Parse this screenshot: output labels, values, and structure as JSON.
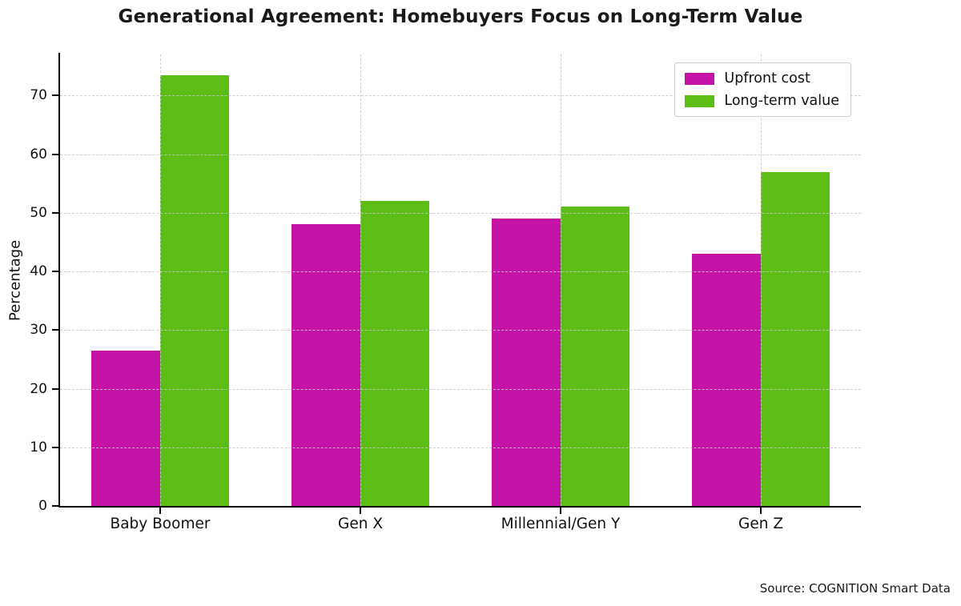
{
  "title": "Generational Agreement: Homebuyers Focus on Long-Term Value",
  "source": "Source: COGNITION Smart Data",
  "colors": {
    "upfront_cost": "#C413A6",
    "long_term_value": "#5CBE14",
    "grid": "#c8c8c8",
    "axis": "#000000",
    "text": "#111111"
  },
  "legend": {
    "items": [
      {
        "label": "Upfront cost",
        "color": "#C413A6"
      },
      {
        "label": "Long-term value",
        "color": "#5CBE14"
      }
    ]
  },
  "chart_data": {
    "type": "bar",
    "title": "Generational Agreement: Homebuyers Focus on Long-Term Value",
    "categories": [
      "Baby Boomer",
      "Gen X",
      "Millennial/Gen Y",
      "Gen Z"
    ],
    "series": [
      {
        "name": "Upfront cost",
        "color": "#C413A6",
        "values": [
          26.5,
          48,
          49,
          43
        ]
      },
      {
        "name": "Long-term value",
        "color": "#5CBE14",
        "values": [
          73.5,
          52,
          51,
          57
        ]
      }
    ],
    "xlabel": "",
    "ylabel": "Percentage",
    "yticks": [
      0,
      10,
      20,
      30,
      40,
      50,
      60,
      70
    ],
    "ylim": [
      0,
      77
    ],
    "grid": true,
    "grid_style": "dashed",
    "legend_position": "upper right",
    "annotation": "Source: COGNITION Smart Data"
  }
}
